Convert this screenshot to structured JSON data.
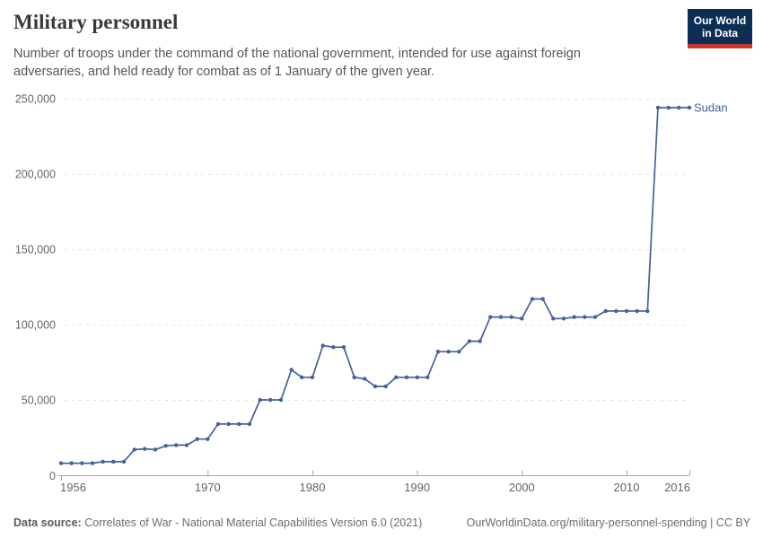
{
  "header": {
    "title": "Military personnel",
    "subtitle": "Number of troops under the command of the national government, intended for use against foreign adversaries, and held ready for combat as of 1 January of the given year."
  },
  "logo": {
    "line1": "Our World",
    "line2": "in Data"
  },
  "chart_data": {
    "type": "line",
    "title": "Military personnel",
    "xlim": [
      1956,
      2016
    ],
    "ylim": [
      0,
      250000
    ],
    "x_ticks": [
      1956,
      1970,
      1980,
      1990,
      2000,
      2010,
      2016
    ],
    "y_ticks": [
      0,
      50000,
      100000,
      150000,
      200000,
      250000
    ],
    "grid": "horizontal-dashed",
    "legend": "line-end-label",
    "series": [
      {
        "name": "Sudan",
        "color": "#44619c",
        "x": [
          1956,
          1957,
          1958,
          1959,
          1960,
          1961,
          1962,
          1963,
          1964,
          1965,
          1966,
          1967,
          1968,
          1969,
          1970,
          1971,
          1972,
          1973,
          1974,
          1975,
          1976,
          1977,
          1978,
          1979,
          1980,
          1981,
          1982,
          1983,
          1984,
          1985,
          1986,
          1987,
          1988,
          1989,
          1990,
          1991,
          1992,
          1993,
          1994,
          1995,
          1996,
          1997,
          1998,
          1999,
          2000,
          2001,
          2002,
          2003,
          2004,
          2005,
          2006,
          2007,
          2008,
          2009,
          2010,
          2011,
          2012,
          2013,
          2014,
          2015,
          2016
        ],
        "values": [
          8000,
          8000,
          8000,
          8000,
          9000,
          9000,
          9000,
          17000,
          17500,
          17000,
          19500,
          20000,
          20000,
          24000,
          24000,
          34000,
          34000,
          34000,
          34000,
          50000,
          50000,
          50000,
          70000,
          65000,
          65000,
          86000,
          85000,
          85000,
          65000,
          64000,
          59000,
          59000,
          65000,
          65000,
          65000,
          65000,
          82000,
          82000,
          82000,
          89000,
          89000,
          105000,
          105000,
          105000,
          104000,
          117000,
          117000,
          104000,
          104000,
          105000,
          105000,
          105000,
          109000,
          109000,
          109000,
          109000,
          109000,
          244000,
          244000,
          244000,
          244000
        ]
      }
    ]
  },
  "footer": {
    "source_label": "Data source:",
    "source_text": "Correlates of War - National Material Capabilities Version 6.0 (2021)",
    "credit": "OurWorldinData.org/military-personnel-spending | CC BY"
  },
  "colors": {
    "line": "#44619c",
    "grid": "#e2e2e2",
    "axis": "#a6a6a6",
    "tick_label": "#646464"
  }
}
